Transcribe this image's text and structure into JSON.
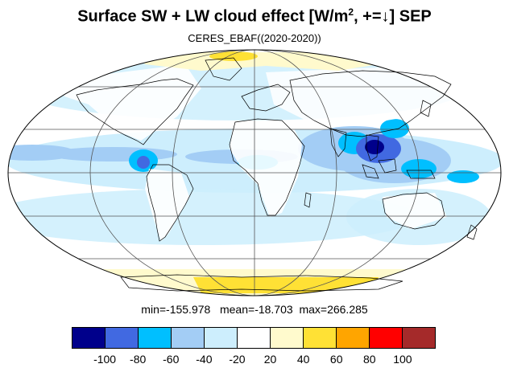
{
  "title": {
    "prefix": "Surface SW + LW cloud effect [W/m",
    "superscript": "2",
    "suffix": ", +=↓]  SEP"
  },
  "subtitle": "CERES_EBAF((2020-2020))",
  "stats": {
    "min_label": "min=",
    "min_value": "-155.978",
    "mean_label": "mean=",
    "mean_value": "-18.703",
    "max_label": "max=",
    "max_value": "266.285"
  },
  "colorbar": {
    "colors": [
      "#00008b",
      "#4169e1",
      "#00bfff",
      "#a3cdf5",
      "#cdeefd",
      "#ffffff",
      "#fffacd",
      "#ffe135",
      "#ffa500",
      "#ff0000",
      "#a52a2a"
    ],
    "ticks": [
      "-100",
      "-80",
      "-60",
      "-40",
      "-20",
      "20",
      "40",
      "60",
      "80",
      "100"
    ]
  },
  "map": {
    "projection": "Mollweide",
    "ocean_color": "#ffffff",
    "coast_color": "#000000"
  }
}
